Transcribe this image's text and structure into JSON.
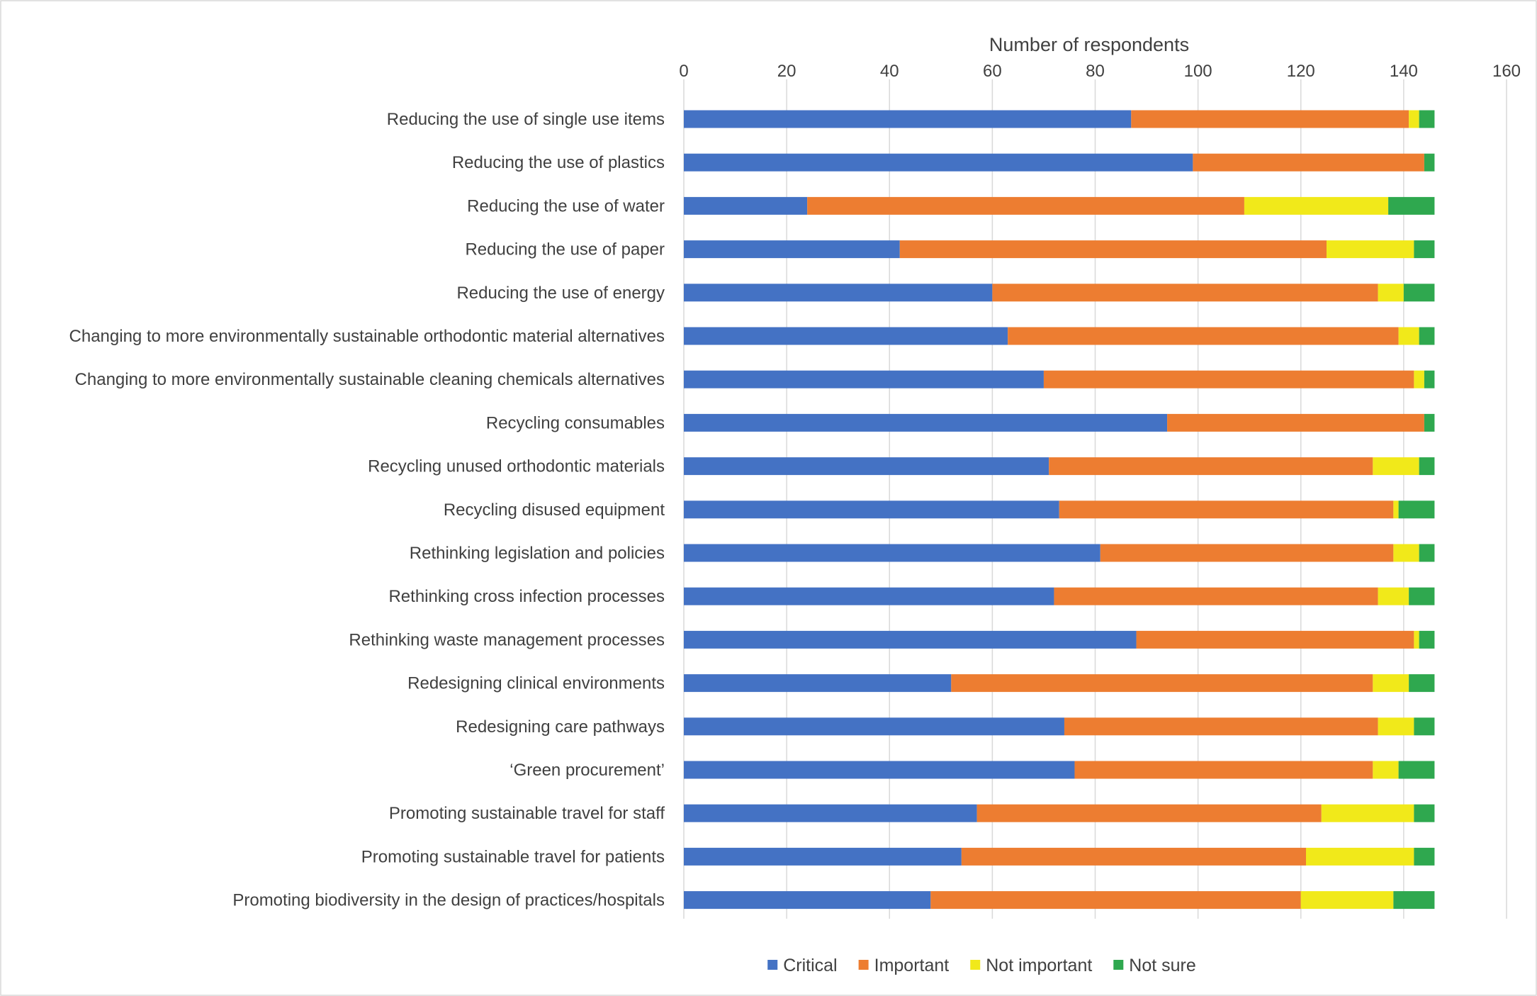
{
  "chart_data": {
    "type": "bar",
    "orientation": "horizontal",
    "stacked": true,
    "xlabel": "Number of respondents",
    "x_axis_position": "top",
    "xlim": [
      0,
      160
    ],
    "xticks": [
      "0",
      "20",
      "40",
      "60",
      "80",
      "100",
      "120",
      "140",
      "160"
    ],
    "grid": true,
    "legend_position": "bottom",
    "categories": [
      "Reducing the use of single use items",
      "Reducing the use of plastics",
      "Reducing the use of water",
      "Reducing the use of paper",
      "Reducing the use of energy",
      "Changing to more environmentally sustainable orthodontic material alternatives",
      "Changing to more environmentally sustainable cleaning chemicals alternatives",
      "Recycling consumables",
      "Recycling unused orthodontic materials",
      "Recycling disused equipment",
      "Rethinking legislation and policies",
      "Rethinking cross infection processes",
      "Rethinking waste management processes",
      "Redesigning clinical environments",
      "Redesigning care pathways",
      "‘Green procurement’",
      "Promoting sustainable travel for staff",
      "Promoting sustainable travel for patients",
      "Promoting biodiversity in the design of practices/hospitals"
    ],
    "series": [
      {
        "name": "Critical",
        "color": "#4472C4",
        "values": [
          87,
          99,
          24,
          42,
          60,
          63,
          70,
          94,
          71,
          73,
          81,
          72,
          88,
          52,
          74,
          76,
          57,
          54,
          48
        ]
      },
      {
        "name": "Important",
        "color": "#ED7D31",
        "values": [
          54,
          45,
          85,
          83,
          75,
          76,
          72,
          50,
          63,
          65,
          57,
          63,
          54,
          82,
          61,
          58,
          67,
          67,
          72
        ]
      },
      {
        "name": "Not important",
        "color": "#F1E91A",
        "values": [
          2,
          0,
          28,
          17,
          5,
          4,
          2,
          0,
          9,
          1,
          5,
          6,
          1,
          7,
          7,
          5,
          18,
          21,
          18
        ]
      },
      {
        "name": "Not sure",
        "color": "#2FA84F",
        "values": [
          3,
          2,
          9,
          4,
          6,
          3,
          2,
          2,
          3,
          7,
          3,
          5,
          3,
          5,
          4,
          7,
          4,
          4,
          8
        ]
      }
    ]
  }
}
